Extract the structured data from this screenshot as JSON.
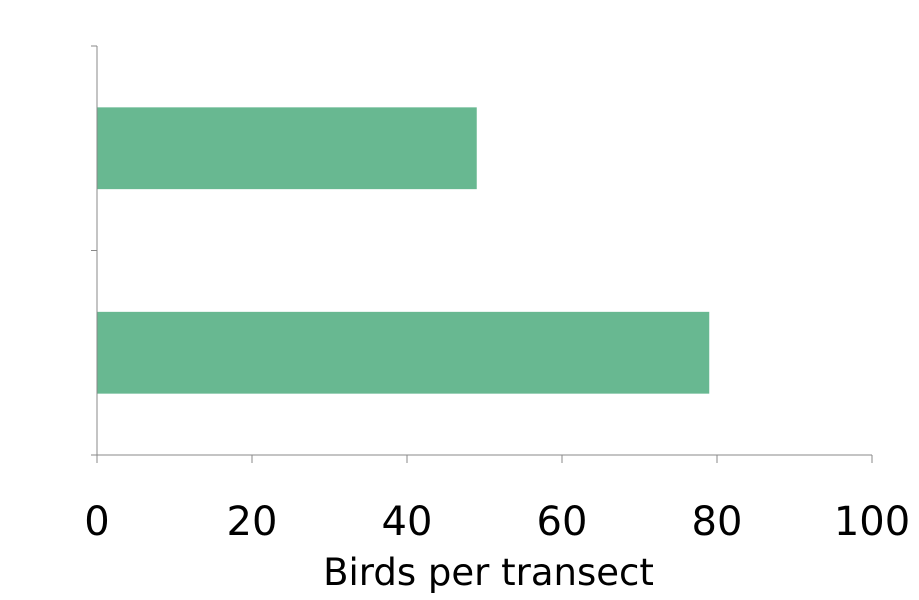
{
  "chart_data": {
    "type": "bar",
    "orientation": "horizontal",
    "categories": [
      "",
      ""
    ],
    "values": [
      49,
      79
    ],
    "xlabel": "Birds per transect",
    "ylabel": "",
    "xlim": [
      0,
      100
    ],
    "x_ticks": [
      0,
      20,
      40,
      60,
      80,
      100
    ],
    "grid": false,
    "legend": "none"
  },
  "colors": {
    "bar": "#68b891",
    "axis": "#888888",
    "text": "#000000"
  }
}
